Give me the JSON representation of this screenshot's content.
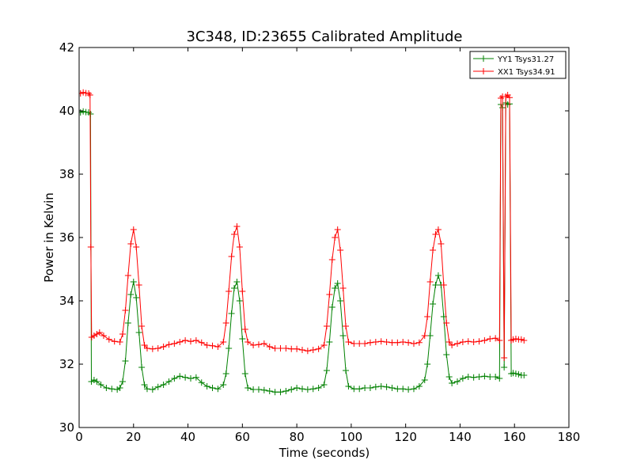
{
  "chart_data": {
    "type": "line",
    "title": "3C348, ID:23655 Calibrated Amplitude",
    "xlabel": "Time (seconds)",
    "ylabel": "Power in Kelvin",
    "xlim": [
      0,
      180
    ],
    "ylim": [
      30,
      42
    ],
    "xticks": [
      "0",
      "20",
      "40",
      "60",
      "80",
      "100",
      "120",
      "140",
      "160",
      "180"
    ],
    "yticks": [
      "30",
      "32",
      "34",
      "36",
      "38",
      "40",
      "42"
    ],
    "grid": false,
    "legend_position": "top-right",
    "marker": "+",
    "series": [
      {
        "name": "YY1 Tsys31.27",
        "color": "#008000",
        "points": [
          [
            0.5,
            39.95
          ],
          [
            1.5,
            39.98
          ],
          [
            2.5,
            39.96
          ],
          [
            3.5,
            39.95
          ],
          [
            4.2,
            39.9
          ],
          [
            4.5,
            31.45
          ],
          [
            5.5,
            31.5
          ],
          [
            6.5,
            31.45
          ],
          [
            8,
            31.35
          ],
          [
            10,
            31.25
          ],
          [
            12,
            31.22
          ],
          [
            14,
            31.2
          ],
          [
            15,
            31.25
          ],
          [
            16,
            31.45
          ],
          [
            17,
            32.1
          ],
          [
            18,
            33.3
          ],
          [
            19,
            34.2
          ],
          [
            20,
            34.6
          ],
          [
            21,
            34.1
          ],
          [
            22,
            33.0
          ],
          [
            23,
            31.9
          ],
          [
            24,
            31.35
          ],
          [
            25,
            31.22
          ],
          [
            27,
            31.2
          ],
          [
            29,
            31.28
          ],
          [
            31,
            31.35
          ],
          [
            33,
            31.45
          ],
          [
            35,
            31.55
          ],
          [
            37,
            31.62
          ],
          [
            39,
            31.58
          ],
          [
            41,
            31.55
          ],
          [
            43,
            31.58
          ],
          [
            45,
            31.42
          ],
          [
            47,
            31.3
          ],
          [
            49,
            31.25
          ],
          [
            51,
            31.22
          ],
          [
            53,
            31.35
          ],
          [
            54,
            31.7
          ],
          [
            55,
            32.5
          ],
          [
            56,
            33.6
          ],
          [
            57,
            34.4
          ],
          [
            58,
            34.6
          ],
          [
            59,
            34.0
          ],
          [
            60,
            32.8
          ],
          [
            61,
            31.7
          ],
          [
            62,
            31.25
          ],
          [
            64,
            31.2
          ],
          [
            66,
            31.2
          ],
          [
            68,
            31.18
          ],
          [
            70,
            31.15
          ],
          [
            72,
            31.12
          ],
          [
            74,
            31.12
          ],
          [
            76,
            31.15
          ],
          [
            78,
            31.2
          ],
          [
            80,
            31.25
          ],
          [
            82,
            31.22
          ],
          [
            84,
            31.2
          ],
          [
            86,
            31.22
          ],
          [
            88,
            31.25
          ],
          [
            90,
            31.35
          ],
          [
            91,
            31.8
          ],
          [
            92,
            32.7
          ],
          [
            93,
            33.8
          ],
          [
            94,
            34.4
          ],
          [
            95,
            34.55
          ],
          [
            96,
            34.0
          ],
          [
            97,
            32.9
          ],
          [
            98,
            31.8
          ],
          [
            99,
            31.3
          ],
          [
            101,
            31.22
          ],
          [
            103,
            31.22
          ],
          [
            105,
            31.25
          ],
          [
            107,
            31.25
          ],
          [
            109,
            31.28
          ],
          [
            111,
            31.3
          ],
          [
            113,
            31.28
          ],
          [
            115,
            31.25
          ],
          [
            117,
            31.22
          ],
          [
            119,
            31.22
          ],
          [
            121,
            31.2
          ],
          [
            123,
            31.22
          ],
          [
            125,
            31.3
          ],
          [
            127,
            31.5
          ],
          [
            128,
            32.0
          ],
          [
            129,
            32.9
          ],
          [
            130,
            33.9
          ],
          [
            131,
            34.5
          ],
          [
            132,
            34.8
          ],
          [
            133,
            34.5
          ],
          [
            134,
            33.5
          ],
          [
            135,
            32.3
          ],
          [
            136,
            31.6
          ],
          [
            137,
            31.4
          ],
          [
            139,
            31.45
          ],
          [
            141,
            31.55
          ],
          [
            143,
            31.6
          ],
          [
            145,
            31.58
          ],
          [
            147,
            31.6
          ],
          [
            149,
            31.62
          ],
          [
            151,
            31.6
          ],
          [
            153,
            31.6
          ],
          [
            154.5,
            31.55
          ],
          [
            155.0,
            40.2
          ],
          [
            155.6,
            40.1
          ],
          [
            156.2,
            31.9
          ],
          [
            156.8,
            40.25
          ],
          [
            157.5,
            40.2
          ],
          [
            158.2,
            40.22
          ],
          [
            158.8,
            31.7
          ],
          [
            159.5,
            31.72
          ],
          [
            160.5,
            31.7
          ],
          [
            161.5,
            31.68
          ],
          [
            162.5,
            31.65
          ],
          [
            163.5,
            31.65
          ]
        ]
      },
      {
        "name": "XX1 Tsys34.91",
        "color": "#ff0000",
        "points": [
          [
            0.5,
            40.55
          ],
          [
            1.5,
            40.58
          ],
          [
            2.5,
            40.56
          ],
          [
            3.5,
            40.55
          ],
          [
            4.0,
            40.5
          ],
          [
            4.3,
            35.7
          ],
          [
            4.6,
            32.85
          ],
          [
            5.5,
            32.9
          ],
          [
            6.5,
            32.95
          ],
          [
            7.5,
            33.0
          ],
          [
            9,
            32.9
          ],
          [
            11,
            32.78
          ],
          [
            13,
            32.72
          ],
          [
            15,
            32.7
          ],
          [
            16,
            32.95
          ],
          [
            17,
            33.7
          ],
          [
            18,
            34.8
          ],
          [
            19,
            35.8
          ],
          [
            20,
            36.25
          ],
          [
            21,
            35.7
          ],
          [
            22,
            34.5
          ],
          [
            23,
            33.2
          ],
          [
            24,
            32.6
          ],
          [
            25,
            32.5
          ],
          [
            27,
            32.48
          ],
          [
            29,
            32.5
          ],
          [
            31,
            32.55
          ],
          [
            33,
            32.62
          ],
          [
            35,
            32.65
          ],
          [
            37,
            32.7
          ],
          [
            39,
            32.75
          ],
          [
            41,
            32.72
          ],
          [
            43,
            32.75
          ],
          [
            45,
            32.68
          ],
          [
            47,
            32.6
          ],
          [
            49,
            32.58
          ],
          [
            51,
            32.55
          ],
          [
            53,
            32.7
          ],
          [
            54,
            33.3
          ],
          [
            55,
            34.3
          ],
          [
            56,
            35.4
          ],
          [
            57,
            36.1
          ],
          [
            58,
            36.35
          ],
          [
            59,
            35.7
          ],
          [
            60,
            34.3
          ],
          [
            61,
            33.1
          ],
          [
            62,
            32.7
          ],
          [
            64,
            32.6
          ],
          [
            66,
            32.62
          ],
          [
            68,
            32.65
          ],
          [
            70,
            32.55
          ],
          [
            72,
            32.5
          ],
          [
            74,
            32.5
          ],
          [
            76,
            32.5
          ],
          [
            78,
            32.48
          ],
          [
            80,
            32.48
          ],
          [
            82,
            32.45
          ],
          [
            84,
            32.42
          ],
          [
            86,
            32.45
          ],
          [
            88,
            32.48
          ],
          [
            90,
            32.6
          ],
          [
            91,
            33.2
          ],
          [
            92,
            34.2
          ],
          [
            93,
            35.3
          ],
          [
            94,
            36.0
          ],
          [
            95,
            36.25
          ],
          [
            96,
            35.6
          ],
          [
            97,
            34.4
          ],
          [
            98,
            33.2
          ],
          [
            99,
            32.7
          ],
          [
            101,
            32.65
          ],
          [
            103,
            32.65
          ],
          [
            105,
            32.65
          ],
          [
            107,
            32.68
          ],
          [
            109,
            32.7
          ],
          [
            111,
            32.72
          ],
          [
            113,
            32.7
          ],
          [
            115,
            32.68
          ],
          [
            117,
            32.68
          ],
          [
            119,
            32.7
          ],
          [
            121,
            32.68
          ],
          [
            123,
            32.65
          ],
          [
            125,
            32.68
          ],
          [
            127,
            32.9
          ],
          [
            128,
            33.5
          ],
          [
            129,
            34.6
          ],
          [
            130,
            35.6
          ],
          [
            131,
            36.1
          ],
          [
            132,
            36.25
          ],
          [
            133,
            35.8
          ],
          [
            134,
            34.5
          ],
          [
            135,
            33.3
          ],
          [
            136,
            32.7
          ],
          [
            137,
            32.6
          ],
          [
            139,
            32.65
          ],
          [
            141,
            32.7
          ],
          [
            143,
            32.72
          ],
          [
            145,
            32.7
          ],
          [
            147,
            32.72
          ],
          [
            149,
            32.75
          ],
          [
            151,
            32.8
          ],
          [
            153,
            32.82
          ],
          [
            154.5,
            32.75
          ],
          [
            155.0,
            40.4
          ],
          [
            155.6,
            40.45
          ],
          [
            156.2,
            32.2
          ],
          [
            156.8,
            40.45
          ],
          [
            157.5,
            40.5
          ],
          [
            158.2,
            40.42
          ],
          [
            158.8,
            32.75
          ],
          [
            159.5,
            32.78
          ],
          [
            160.5,
            32.8
          ],
          [
            161.5,
            32.78
          ],
          [
            162.5,
            32.78
          ],
          [
            163.5,
            32.75
          ]
        ]
      }
    ]
  }
}
